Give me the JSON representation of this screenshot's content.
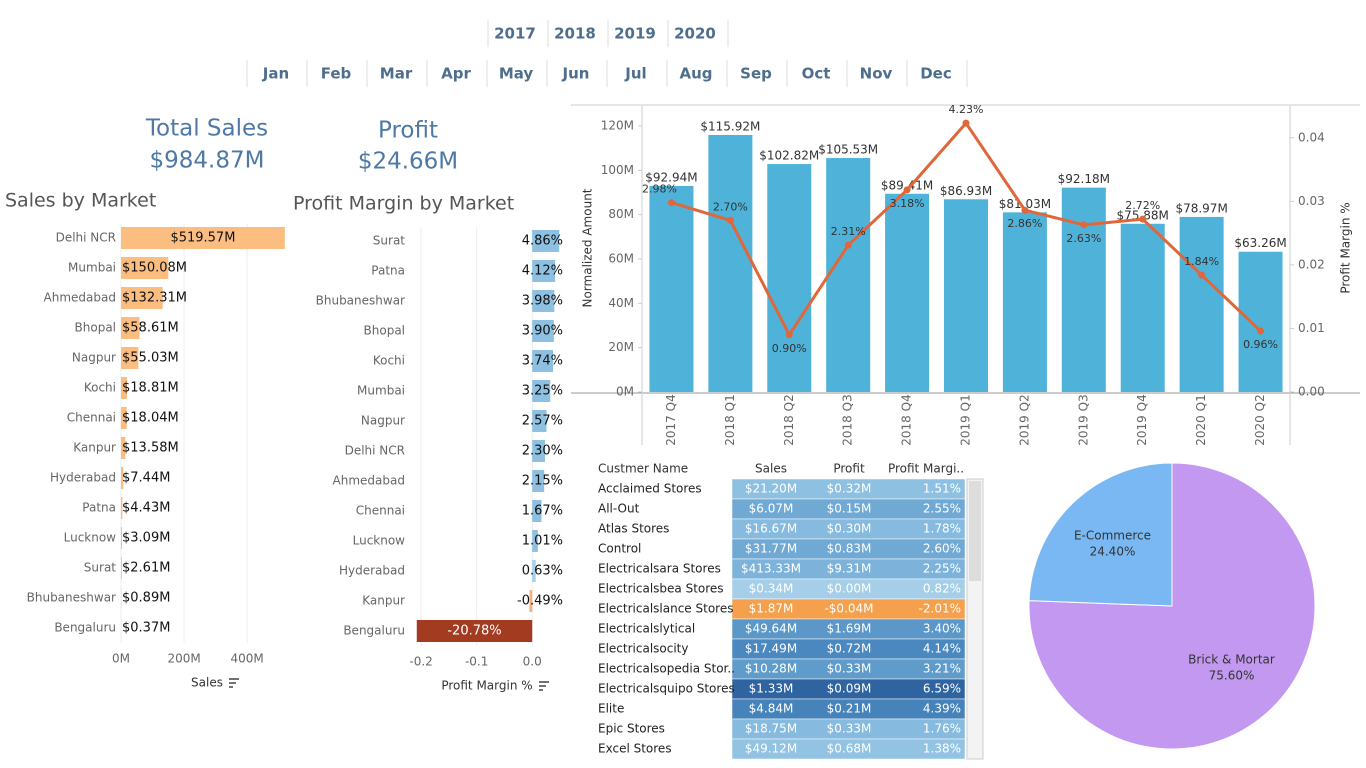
{
  "filters": {
    "years": [
      "2017",
      "2018",
      "2019",
      "2020"
    ],
    "months": [
      "Jan",
      "Feb",
      "Mar",
      "Apr",
      "May",
      "Jun",
      "Jul",
      "Aug",
      "Sep",
      "Oct",
      "Nov",
      "Dec"
    ]
  },
  "kpis": [
    {
      "label": "Total Sales",
      "value": "$984.87M"
    },
    {
      "label": "Profit",
      "value": "$24.66M"
    }
  ],
  "chart_data": [
    {
      "type": "hbar",
      "title": "Sales by Market",
      "x_label": "Sales",
      "color": "#fbbd80",
      "grid": true,
      "categories": [
        "Delhi NCR",
        "Mumbai",
        "Ahmedabad",
        "Bhopal",
        "Nagpur",
        "Kochi",
        "Chennai",
        "Kanpur",
        "Hyderabad",
        "Patna",
        "Lucknow",
        "Surat",
        "Bhubaneshwar",
        "Bengaluru"
      ],
      "values": [
        519.57,
        150.08,
        132.31,
        58.61,
        55.03,
        18.81,
        18.04,
        13.58,
        7.44,
        4.43,
        3.09,
        2.61,
        0.89,
        0.37
      ],
      "value_labels": [
        "$519.57M",
        "$150.08M",
        "$132.31M",
        "$58.61M",
        "$55.03M",
        "$18.81M",
        "$18.04M",
        "$13.58M",
        "$7.44M",
        "$4.43M",
        "$3.09M",
        "$2.61M",
        "$0.89M",
        "$0.37M"
      ],
      "xlim": [
        0,
        520
      ],
      "xticks": [
        {
          "value": 0,
          "label": "0M"
        },
        {
          "value": 200,
          "label": "200M"
        },
        {
          "value": 400,
          "label": "400M"
        }
      ]
    },
    {
      "type": "hbar",
      "title": "Profit Margin by Market",
      "x_label": "Profit Margin %",
      "grid": true,
      "categories": [
        "Surat",
        "Patna",
        "Bhubaneshwar",
        "Bhopal",
        "Kochi",
        "Mumbai",
        "Nagpur",
        "Delhi NCR",
        "Ahmedabad",
        "Chennai",
        "Lucknow",
        "Hyderabad",
        "Kanpur",
        "Bengaluru"
      ],
      "values": [
        0.0486,
        0.0412,
        0.0398,
        0.039,
        0.0374,
        0.0325,
        0.0257,
        0.023,
        0.0215,
        0.0167,
        0.0101,
        0.0063,
        -0.0049,
        -0.2078
      ],
      "value_labels": [
        "4.86%",
        "4.12%",
        "3.98%",
        "3.90%",
        "3.74%",
        "3.25%",
        "2.57%",
        "2.30%",
        "2.15%",
        "1.67%",
        "1.01%",
        "0.63%",
        "-0.49%",
        "-20.78%"
      ],
      "colors": [
        "#8ec0e1",
        "#8ec0e1",
        "#8ec0e1",
        "#8ec0e1",
        "#8ec0e1",
        "#8ec0e1",
        "#8ec0e1",
        "#8ec0e1",
        "#8ec0e1",
        "#8ec0e1",
        "#8ec0e1",
        "#a8d0ea",
        "#f2b27a",
        "#a33b20"
      ],
      "xlim": [
        -0.22,
        0.05
      ],
      "xticks": [
        -0.2,
        -0.1,
        {
          "value": 0,
          "label": "0.0"
        }
      ]
    },
    {
      "type": "combo",
      "y_label": "Normalized Amount",
      "y2_label": "Profit Margin %",
      "categories": [
        "2017 Q4",
        "2018 Q1",
        "2018 Q2",
        "2018 Q3",
        "2018 Q4",
        "2019 Q1",
        "2019 Q2",
        "2019 Q3",
        "2019 Q4",
        "2020 Q1",
        "2020 Q2"
      ],
      "series": [
        {
          "type": "bar",
          "color": "#4fb3d9",
          "values": [
            92.94,
            115.92,
            102.82,
            105.53,
            89.41,
            86.93,
            81.03,
            92.18,
            75.88,
            78.97,
            63.26
          ],
          "value_labels": [
            "$92.94M",
            "$115.92M",
            "$102.82M",
            "$105.53M",
            "$89.41M",
            "$86.93M",
            "$81.03M",
            "$92.18M",
            "$75.88M",
            "$78.97M",
            "$63.26M"
          ]
        },
        {
          "type": "line",
          "axis": "y2",
          "color": "#e0673a",
          "values": [
            0.0298,
            0.027,
            0.009,
            0.0231,
            0.0318,
            0.0423,
            0.0286,
            0.0263,
            0.0272,
            0.0184,
            0.0096
          ],
          "value_labels": [
            "2.98%",
            "2.70%",
            "0.90%",
            "2.31%",
            "3.18%",
            "4.23%",
            "2.86%",
            "2.63%",
            "2.72%",
            "1.84%",
            "0.96%"
          ]
        }
      ],
      "ylim": [
        0,
        129
      ],
      "yticks": [
        {
          "value": 0,
          "label": "0M"
        },
        {
          "value": 20,
          "label": "20M"
        },
        {
          "value": 40,
          "label": "40M"
        },
        {
          "value": 60,
          "label": "60M"
        },
        {
          "value": 80,
          "label": "80M"
        },
        {
          "value": 100,
          "label": "100M"
        },
        {
          "value": 120,
          "label": "120M"
        }
      ],
      "y2lim": [
        0,
        0.045
      ],
      "y2ticks": [
        {
          "value": 0,
          "label": "0.00"
        },
        0.01,
        0.02,
        0.03,
        0.04
      ]
    },
    {
      "type": "pie",
      "categories": [
        "Brick & Mortar",
        "E-Commerce"
      ],
      "values": [
        75.6,
        24.4
      ],
      "value_labels": [
        "75.60%",
        "24.40%"
      ],
      "colors": [
        "#c398f0",
        "#7ab8f4"
      ]
    }
  ],
  "table": {
    "columns": [
      "Custmer Name",
      "Sales",
      "Profit",
      "Profit Margi.."
    ],
    "rows": [
      [
        "Acclaimed Stores",
        "$21.20M",
        "$0.32M",
        "1.51%"
      ],
      [
        "All-Out",
        "$6.07M",
        "$0.15M",
        "2.55%"
      ],
      [
        "Atlas Stores",
        "$16.67M",
        "$0.30M",
        "1.78%"
      ],
      [
        "Control",
        "$31.77M",
        "$0.83M",
        "2.60%"
      ],
      [
        "Electricalsara Stores",
        "$413.33M",
        "$9.31M",
        "2.25%"
      ],
      [
        "Electricalsbea Stores",
        "$0.34M",
        "$0.00M",
        "0.82%"
      ],
      [
        "Electricalslance Stores",
        "$1.87M",
        "-$0.04M",
        "-2.01%"
      ],
      [
        "Electricalslytical",
        "$49.64M",
        "$1.69M",
        "3.40%"
      ],
      [
        "Electricalsocity",
        "$17.49M",
        "$0.72M",
        "4.14%"
      ],
      [
        "Electricalsopedia Stor..",
        "$10.28M",
        "$0.33M",
        "3.21%"
      ],
      [
        "Electricalsquipo Stores",
        "$1.33M",
        "$0.09M",
        "6.59%"
      ],
      [
        "Elite",
        "$4.84M",
        "$0.21M",
        "4.39%"
      ],
      [
        "Epic Stores",
        "$18.75M",
        "$0.33M",
        "1.76%"
      ],
      [
        "Excel Stores",
        "$49.12M",
        "$0.68M",
        "1.38%"
      ]
    ],
    "colors": [
      "#8ec0e1",
      "#71a9d5",
      "#86bbdf",
      "#71a9d5",
      "#7db3da",
      "#a5cee9",
      "#f4a04c",
      "#5b97c8",
      "#4a88bf",
      "#5f9bcb",
      "#2f64a0",
      "#4683bb",
      "#86bbdf",
      "#93c3e3"
    ]
  }
}
